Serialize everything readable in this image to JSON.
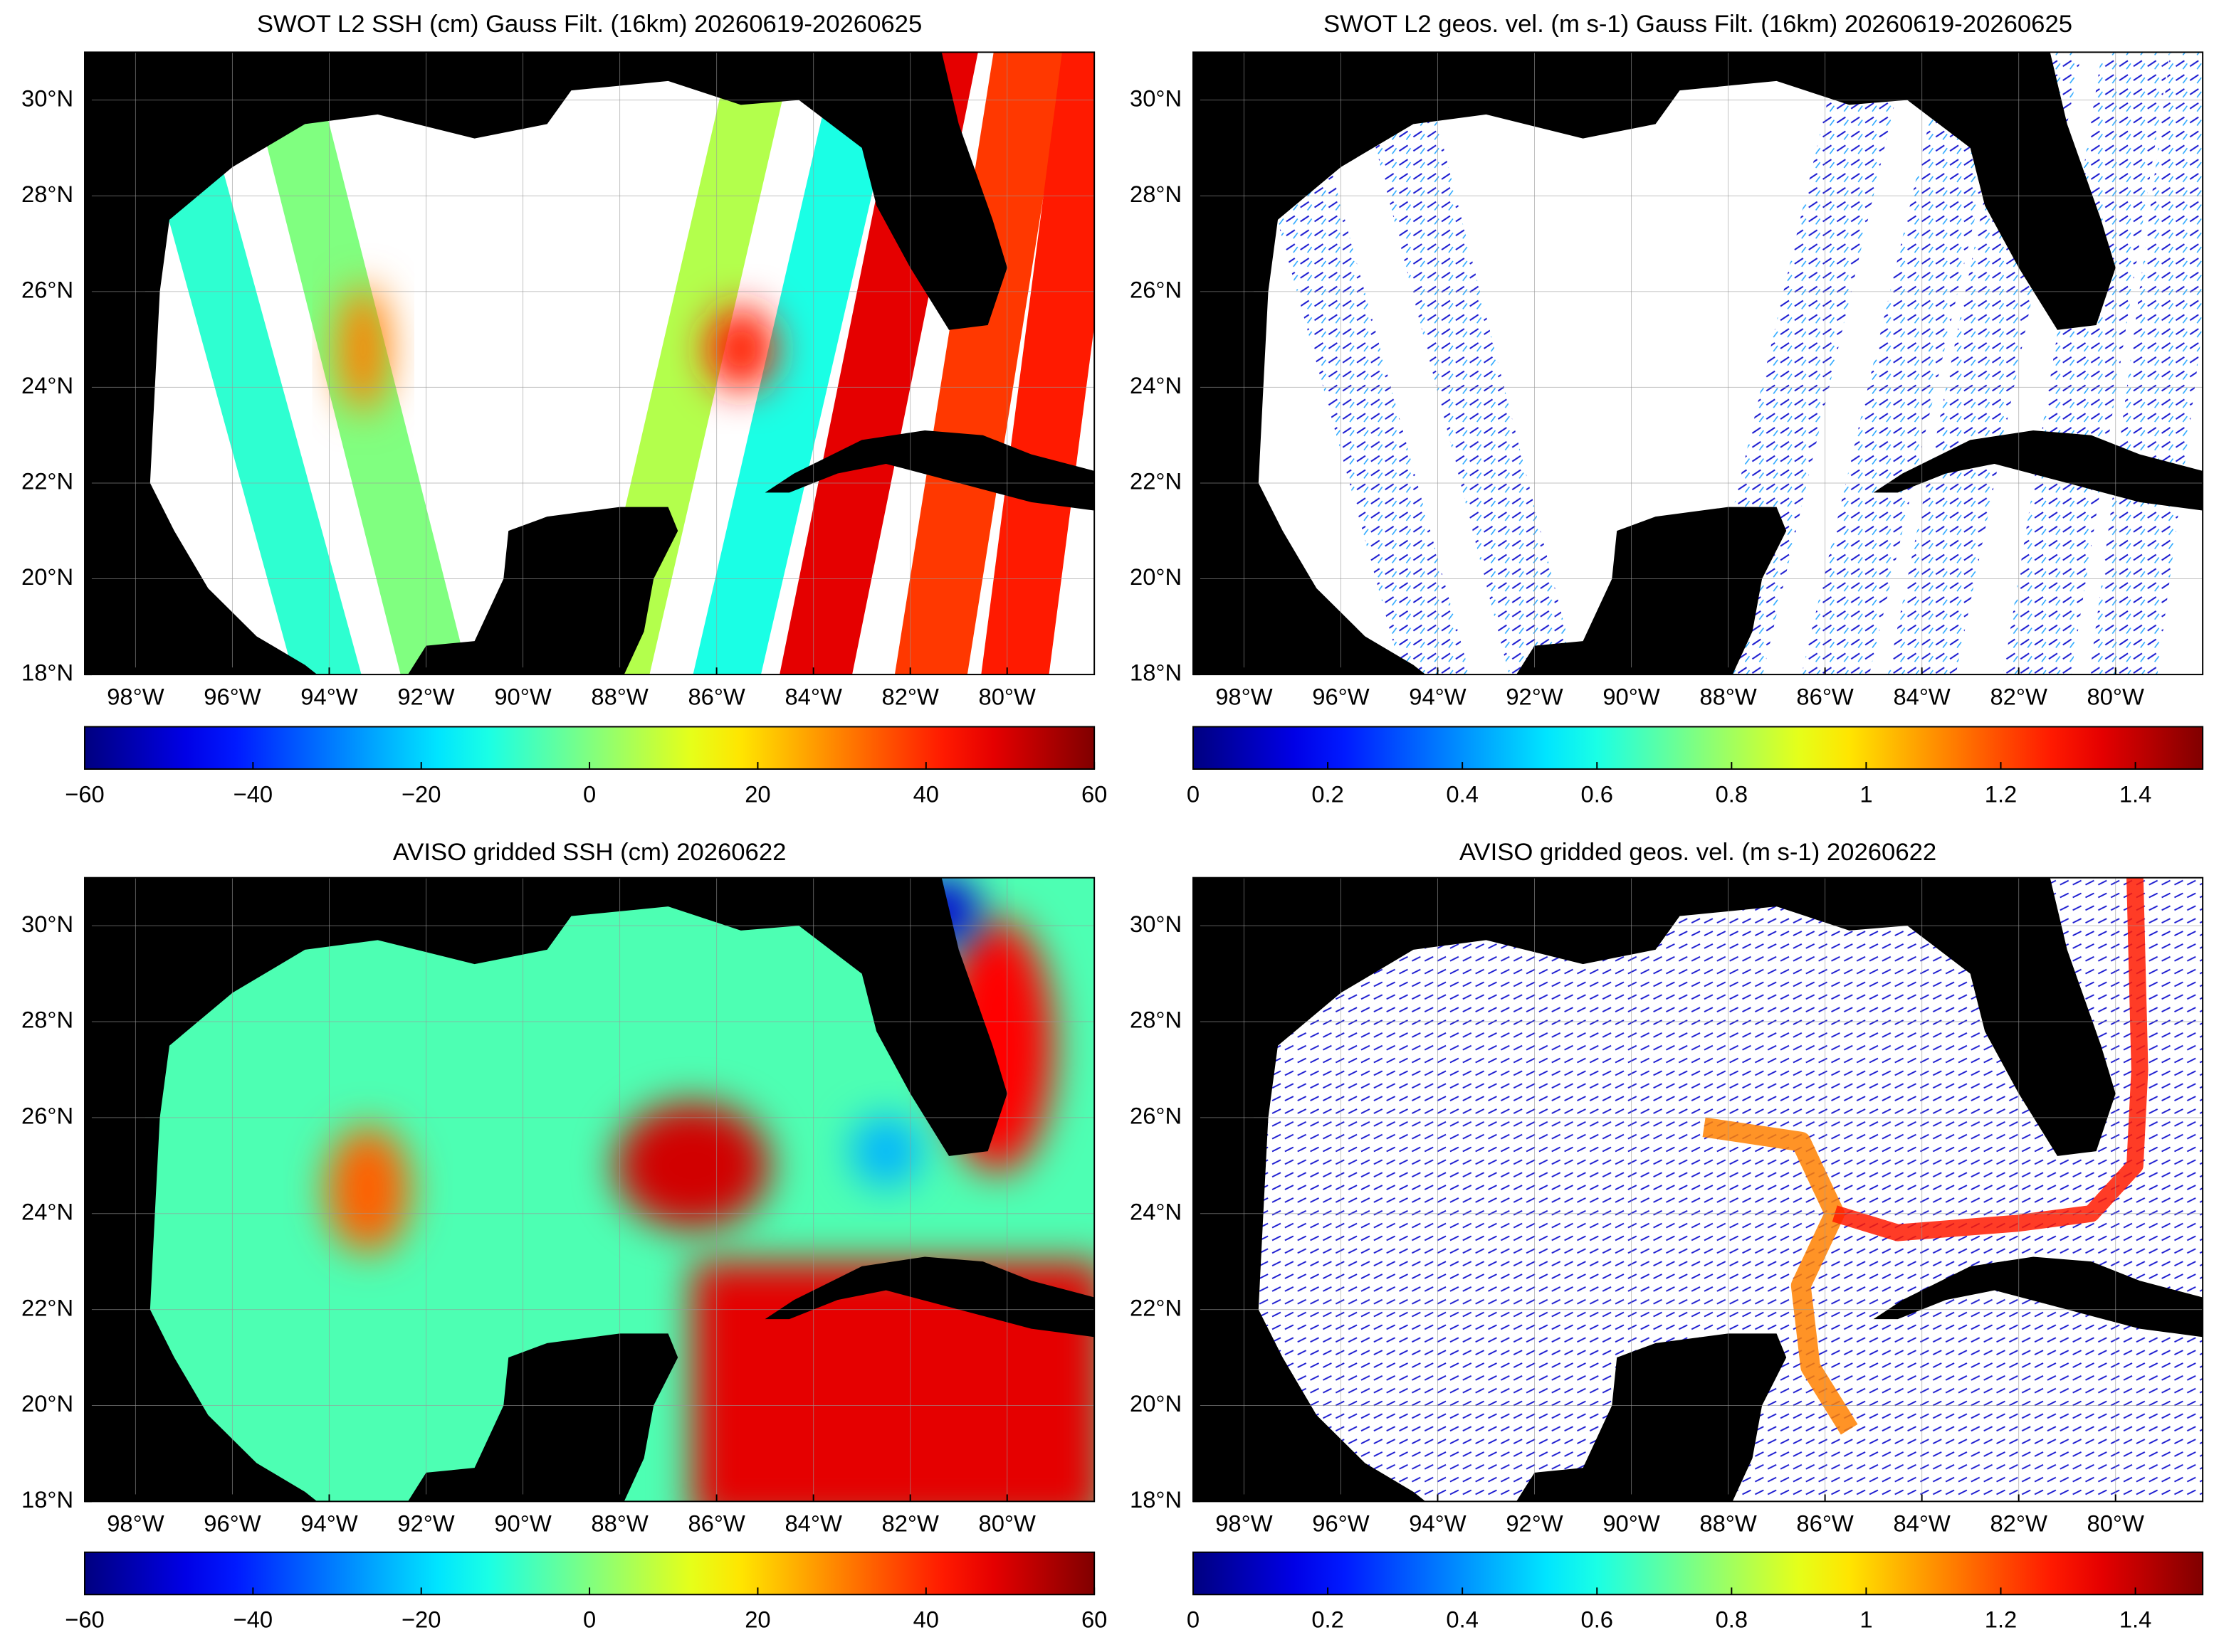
{
  "maps": [
    {
      "title": "SWOT L2 SSH (cm) Gauss Filt. (16km) 20260619-20260625",
      "xlim": [
        -99.05,
        -78.2
      ],
      "ylim": [
        18,
        31
      ],
      "xticks": [
        {
          "value": -98,
          "label": "98°W"
        },
        {
          "value": -96,
          "label": "96°W"
        },
        {
          "value": -94,
          "label": "94°W"
        },
        {
          "value": -92,
          "label": "92°W"
        },
        {
          "value": -90,
          "label": "90°W"
        },
        {
          "value": -88,
          "label": "88°W"
        },
        {
          "value": -86,
          "label": "86°W"
        },
        {
          "value": -84,
          "label": "84°W"
        },
        {
          "value": -82,
          "label": "82°W"
        },
        {
          "value": -80,
          "label": "80°W"
        }
      ],
      "yticks": [
        {
          "value": 18,
          "label": "18°N"
        },
        {
          "value": 20,
          "label": "20°N"
        },
        {
          "value": 22,
          "label": "22°N"
        },
        {
          "value": 24,
          "label": "24°N"
        },
        {
          "value": 26,
          "label": "26°N"
        },
        {
          "value": 28,
          "label": "28°N"
        },
        {
          "value": 30,
          "label": "30°N"
        }
      ],
      "grid": true,
      "colorbar": {
        "colormap": "jet",
        "lim": [
          -60,
          60
        ],
        "ticks": [
          {
            "value": -60,
            "label": "−60"
          },
          {
            "value": -40,
            "label": "−40"
          },
          {
            "value": -20,
            "label": "−20"
          },
          0,
          20,
          40,
          60
        ]
      }
    },
    {
      "title": "SWOT L2 geos. vel. (m s-1) Gauss Filt. (16km) 20260619-20260625",
      "xlim": [
        -99.05,
        -78.2
      ],
      "ylim": [
        18,
        31
      ],
      "xticks": [
        {
          "value": -98,
          "label": "98°W"
        },
        {
          "value": -96,
          "label": "96°W"
        },
        {
          "value": -94,
          "label": "94°W"
        },
        {
          "value": -92,
          "label": "92°W"
        },
        {
          "value": -90,
          "label": "90°W"
        },
        {
          "value": -88,
          "label": "88°W"
        },
        {
          "value": -86,
          "label": "86°W"
        },
        {
          "value": -84,
          "label": "84°W"
        },
        {
          "value": -82,
          "label": "82°W"
        },
        {
          "value": -80,
          "label": "80°W"
        }
      ],
      "yticks": [
        {
          "value": 18,
          "label": "18°N"
        },
        {
          "value": 20,
          "label": "20°N"
        },
        {
          "value": 22,
          "label": "22°N"
        },
        {
          "value": 24,
          "label": "24°N"
        },
        {
          "value": 26,
          "label": "26°N"
        },
        {
          "value": 28,
          "label": "28°N"
        },
        {
          "value": 30,
          "label": "30°N"
        }
      ],
      "grid": true,
      "colorbar": {
        "colormap": "jet",
        "lim": [
          0,
          1.5
        ],
        "ticks": [
          0,
          0.2,
          0.4,
          0.6,
          0.8,
          1,
          1.2,
          1.4
        ]
      }
    },
    {
      "title": "AVISO gridded SSH (cm) 20260622",
      "xlim": [
        -99.05,
        -78.2
      ],
      "ylim": [
        18,
        31
      ],
      "xticks": [
        {
          "value": -98,
          "label": "98°W"
        },
        {
          "value": -96,
          "label": "96°W"
        },
        {
          "value": -94,
          "label": "94°W"
        },
        {
          "value": -92,
          "label": "92°W"
        },
        {
          "value": -90,
          "label": "90°W"
        },
        {
          "value": -88,
          "label": "88°W"
        },
        {
          "value": -86,
          "label": "86°W"
        },
        {
          "value": -84,
          "label": "84°W"
        },
        {
          "value": -82,
          "label": "82°W"
        },
        {
          "value": -80,
          "label": "80°W"
        }
      ],
      "yticks": [
        {
          "value": 18,
          "label": "18°N"
        },
        {
          "value": 20,
          "label": "20°N"
        },
        {
          "value": 22,
          "label": "22°N"
        },
        {
          "value": 24,
          "label": "24°N"
        },
        {
          "value": 26,
          "label": "26°N"
        },
        {
          "value": 28,
          "label": "28°N"
        },
        {
          "value": 30,
          "label": "30°N"
        }
      ],
      "grid": true,
      "colorbar": {
        "colormap": "jet",
        "lim": [
          -60,
          60
        ],
        "ticks": [
          {
            "value": -60,
            "label": "−60"
          },
          {
            "value": -40,
            "label": "−40"
          },
          {
            "value": -20,
            "label": "−20"
          },
          0,
          20,
          40,
          60
        ]
      }
    },
    {
      "title": "AVISO gridded geos. vel. (m s-1)  20260622",
      "xlim": [
        -99.05,
        -78.2
      ],
      "ylim": [
        18,
        31
      ],
      "xticks": [
        {
          "value": -98,
          "label": "98°W"
        },
        {
          "value": -96,
          "label": "96°W"
        },
        {
          "value": -94,
          "label": "94°W"
        },
        {
          "value": -92,
          "label": "92°W"
        },
        {
          "value": -90,
          "label": "90°W"
        },
        {
          "value": -88,
          "label": "88°W"
        },
        {
          "value": -86,
          "label": "86°W"
        },
        {
          "value": -84,
          "label": "84°W"
        },
        {
          "value": -82,
          "label": "82°W"
        },
        {
          "value": -80,
          "label": "80°W"
        }
      ],
      "yticks": [
        {
          "value": 18,
          "label": "18°N"
        },
        {
          "value": 20,
          "label": "20°N"
        },
        {
          "value": 22,
          "label": "22°N"
        },
        {
          "value": 24,
          "label": "24°N"
        },
        {
          "value": 26,
          "label": "26°N"
        },
        {
          "value": 28,
          "label": "28°N"
        },
        {
          "value": 30,
          "label": "30°N"
        }
      ],
      "grid": true,
      "colorbar": {
        "colormap": "jet",
        "lim": [
          0,
          1.5
        ],
        "ticks": [
          0,
          0.2,
          0.4,
          0.6,
          0.8,
          1,
          1.2,
          1.4
        ]
      }
    }
  ]
}
